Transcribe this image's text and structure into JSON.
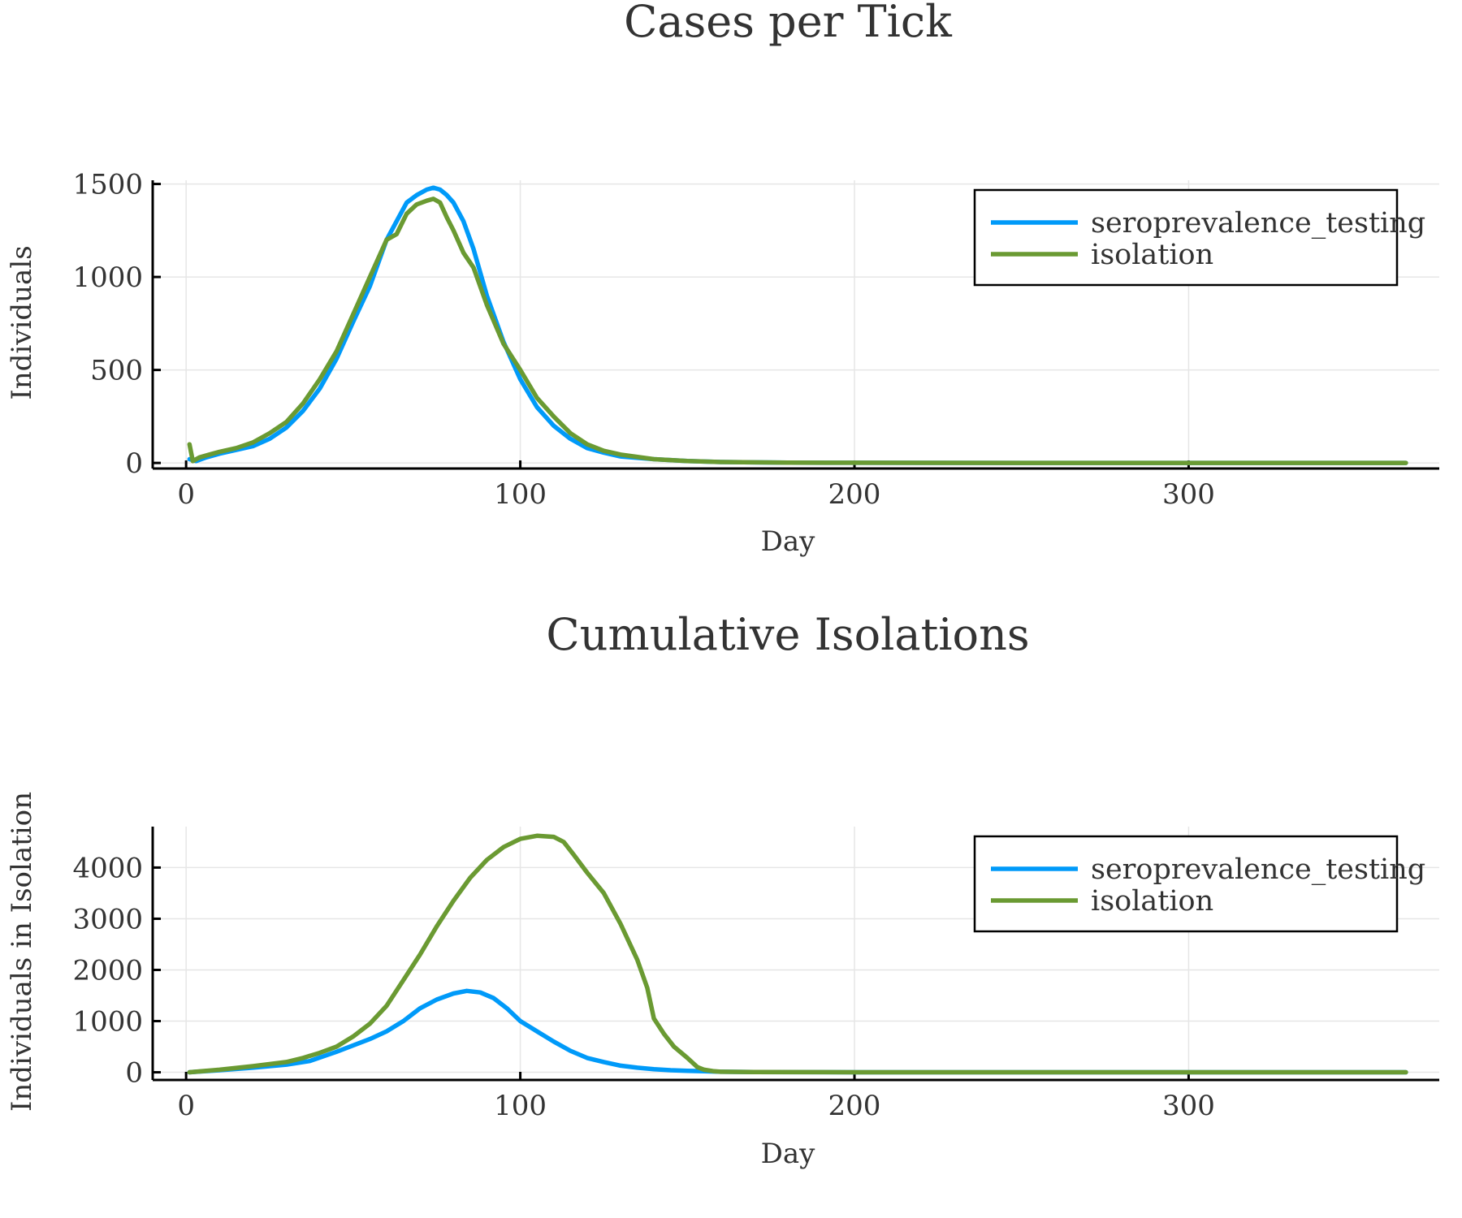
{
  "colors": {
    "seroprevalence_testing": "#009af9",
    "isolation": "#6a9a32"
  },
  "chart_data": [
    {
      "type": "line",
      "title": "Cases per Tick",
      "xlabel": "Day",
      "ylabel": "Individuals",
      "xlim": [
        -10,
        375
      ],
      "ylim": [
        -30,
        1520
      ],
      "xticks": [
        0,
        100,
        200,
        300
      ],
      "yticks": [
        0,
        500,
        1000,
        1500
      ],
      "grid": true,
      "legend": "top-right",
      "series": [
        {
          "name": "seroprevalence_testing",
          "color_key": "seroprevalence_testing",
          "x": [
            1,
            3,
            6,
            10,
            15,
            20,
            25,
            30,
            35,
            40,
            45,
            50,
            55,
            60,
            63,
            66,
            69,
            72,
            74,
            76,
            78,
            80,
            83,
            86,
            90,
            95,
            100,
            105,
            110,
            115,
            120,
            125,
            130,
            140,
            150,
            160,
            170,
            180,
            200,
            250,
            300,
            365
          ],
          "y": [
            20,
            10,
            30,
            50,
            70,
            90,
            130,
            190,
            280,
            400,
            560,
            760,
            950,
            1200,
            1300,
            1400,
            1440,
            1470,
            1480,
            1470,
            1440,
            1400,
            1300,
            1150,
            900,
            650,
            450,
            300,
            200,
            130,
            80,
            55,
            35,
            20,
            10,
            5,
            3,
            2,
            1,
            0,
            0,
            0
          ]
        },
        {
          "name": "isolation",
          "color_key": "isolation",
          "x": [
            1,
            2,
            4,
            7,
            10,
            15,
            20,
            25,
            30,
            35,
            40,
            45,
            50,
            55,
            60,
            63,
            66,
            69,
            72,
            74,
            76,
            78,
            80,
            83,
            86,
            90,
            95,
            100,
            105,
            110,
            115,
            120,
            125,
            130,
            140,
            150,
            160,
            170,
            180,
            200,
            250,
            300,
            365
          ],
          "y": [
            100,
            10,
            30,
            45,
            60,
            80,
            110,
            160,
            220,
            320,
            450,
            600,
            800,
            1000,
            1200,
            1230,
            1340,
            1390,
            1410,
            1420,
            1400,
            1320,
            1250,
            1130,
            1050,
            850,
            640,
            500,
            350,
            250,
            160,
            100,
            65,
            45,
            20,
            10,
            5,
            3,
            2,
            1,
            0,
            0,
            0
          ]
        }
      ]
    },
    {
      "type": "line",
      "title": "Cumulative Isolations",
      "xlabel": "Day",
      "ylabel": "Individuals in Isolation",
      "xlim": [
        -10,
        375
      ],
      "ylim": [
        -150,
        4800
      ],
      "xticks": [
        0,
        100,
        200,
        300
      ],
      "yticks": [
        0,
        1000,
        2000,
        3000,
        4000
      ],
      "grid": true,
      "legend": "top-right",
      "series": [
        {
          "name": "seroprevalence_testing",
          "color_key": "seroprevalence_testing",
          "x": [
            1,
            10,
            20,
            30,
            37,
            45,
            55,
            60,
            65,
            70,
            75,
            80,
            84,
            88,
            92,
            96,
            100,
            105,
            110,
            115,
            120,
            125,
            130,
            135,
            140,
            145,
            150,
            155,
            160,
            170,
            200,
            250,
            300,
            365
          ],
          "y": [
            0,
            40,
            90,
            150,
            220,
            400,
            650,
            800,
            1000,
            1250,
            1420,
            1540,
            1590,
            1560,
            1450,
            1250,
            1000,
            800,
            600,
            420,
            280,
            200,
            130,
            90,
            60,
            40,
            30,
            20,
            10,
            5,
            0,
            0,
            0,
            0
          ]
        },
        {
          "name": "isolation",
          "color_key": "isolation",
          "x": [
            1,
            10,
            20,
            30,
            35,
            40,
            45,
            50,
            55,
            60,
            65,
            70,
            75,
            80,
            85,
            90,
            95,
            100,
            105,
            110,
            113,
            116,
            120,
            125,
            130,
            135,
            138,
            140,
            143,
            146,
            150,
            153,
            155,
            158,
            160,
            170,
            200,
            250,
            300,
            365
          ],
          "y": [
            0,
            50,
            120,
            200,
            280,
            380,
            500,
            700,
            950,
            1300,
            1800,
            2300,
            2850,
            3350,
            3800,
            4150,
            4400,
            4560,
            4620,
            4600,
            4500,
            4250,
            3900,
            3500,
            2900,
            2200,
            1650,
            1050,
            750,
            500,
            280,
            100,
            50,
            20,
            10,
            5,
            0,
            0,
            0,
            0
          ]
        }
      ]
    }
  ]
}
